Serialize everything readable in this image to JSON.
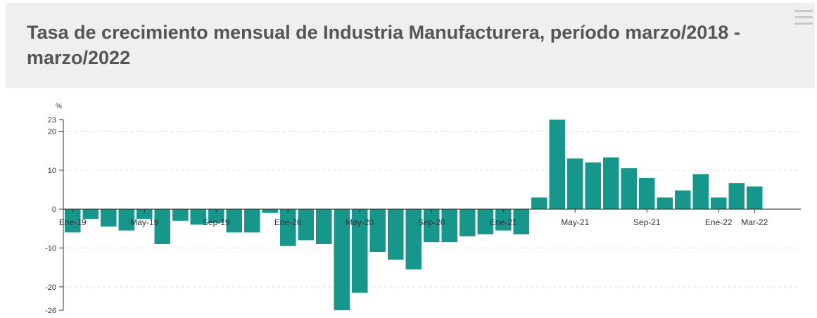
{
  "header": {
    "title": "Tasa de crecimiento mensual de Industria Manufacturera, período marzo/2018 - marzo/2022",
    "menu_icon": "hamburger-menu-icon"
  },
  "chart_data": {
    "type": "bar",
    "title": "Tasa de crecimiento mensual de Industria Manufacturera, período marzo/2018 - marzo/2022",
    "xlabel": "",
    "ylabel": "%",
    "ylim": [
      -26,
      23
    ],
    "yticks": [
      -26,
      -20,
      -10,
      0,
      10,
      20,
      23
    ],
    "grid": true,
    "legend": "none",
    "bar_color": "#17968c",
    "xtick_labels": [
      {
        "index": 0,
        "label": "Ene-19"
      },
      {
        "index": 4,
        "label": "May-19"
      },
      {
        "index": 8,
        "label": "Sep-19"
      },
      {
        "index": 12,
        "label": "Ene-20"
      },
      {
        "index": 16,
        "label": "May-20"
      },
      {
        "index": 20,
        "label": "Sep-20"
      },
      {
        "index": 24,
        "label": "Ene-21"
      },
      {
        "index": 28,
        "label": "May-21"
      },
      {
        "index": 32,
        "label": "Sep-21"
      },
      {
        "index": 36,
        "label": "Ene-22"
      },
      {
        "index": 38,
        "label": "Mar-22"
      }
    ],
    "values": [
      -6.0,
      -2.5,
      -4.5,
      -5.5,
      -2.5,
      -9.0,
      -3.0,
      -4.0,
      -3.5,
      -6.0,
      -6.0,
      -1.0,
      -9.5,
      -8.0,
      -9.0,
      -26.0,
      -21.5,
      -11.0,
      -13.0,
      -15.5,
      -8.5,
      -8.5,
      -7.0,
      -6.5,
      -5.5,
      -6.5,
      3.0,
      23.0,
      13.0,
      12.0,
      13.3,
      10.5,
      8.0,
      3.0,
      4.8,
      9.0,
      3.0,
      6.7,
      5.8
    ]
  }
}
